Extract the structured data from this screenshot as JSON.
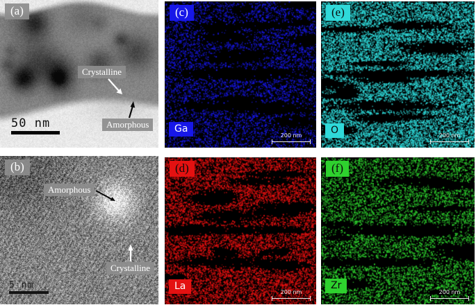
{
  "panels": {
    "a": {
      "letter": "(a)",
      "annotations": {
        "crystalline": "Crystalline",
        "amorphous": "Amorphous"
      },
      "scalebar": "50 nm"
    },
    "b": {
      "letter": "(b)",
      "annotations": {
        "amorphous": "Amorphous",
        "crystalline": "Crystalline"
      },
      "scalebar": "5 nm"
    },
    "c": {
      "letter": "(c)",
      "element": "Ga",
      "scalebar": "200 nm"
    },
    "d": {
      "letter": "(d)",
      "element": "La",
      "scalebar": "200 nm"
    },
    "e": {
      "letter": "(e)",
      "element": "O",
      "scalebar": "200 nm"
    },
    "f": {
      "letter": "(f)",
      "element": "Zr",
      "scalebar": "200 nm"
    }
  },
  "colors": {
    "background": "#ffffff",
    "map_background": "#000000",
    "ga_blue": "#1717e8",
    "la_red": "#e41111",
    "o_cyan": "#2fd9d9",
    "zr_green": "#2ed12e",
    "annotation_chip_gray": "#8d8d8d",
    "annotation_text": "#ffffff",
    "scalebar_white": "#ededed"
  }
}
